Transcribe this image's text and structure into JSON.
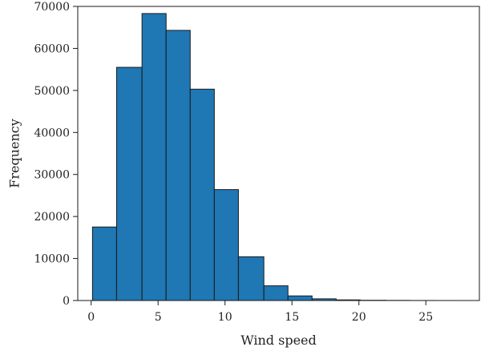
{
  "chart_data": {
    "type": "bar",
    "title": "",
    "xlabel": "Wind speed",
    "ylabel": "Frequency",
    "xlim": [
      -1.0,
      29.0
    ],
    "ylim": [
      0,
      70000
    ],
    "grid": false,
    "bar_color": "#1f77b4",
    "edge_color": "#1a1a1a",
    "x_ticks": [
      0,
      5,
      10,
      15,
      20,
      25
    ],
    "y_ticks": [
      0,
      10000,
      20000,
      30000,
      40000,
      50000,
      60000,
      70000
    ],
    "bins": [
      {
        "start": 0.1,
        "end": 1.9,
        "value": 17500
      },
      {
        "start": 1.9,
        "end": 3.8,
        "value": 55500
      },
      {
        "start": 3.8,
        "end": 5.6,
        "value": 68300
      },
      {
        "start": 5.6,
        "end": 7.4,
        "value": 64300
      },
      {
        "start": 7.4,
        "end": 9.2,
        "value": 50300
      },
      {
        "start": 9.2,
        "end": 11.0,
        "value": 26400
      },
      {
        "start": 11.0,
        "end": 12.9,
        "value": 10400
      },
      {
        "start": 12.9,
        "end": 14.7,
        "value": 3500
      },
      {
        "start": 14.7,
        "end": 16.5,
        "value": 1100
      },
      {
        "start": 16.5,
        "end": 18.3,
        "value": 400
      },
      {
        "start": 18.3,
        "end": 20.1,
        "value": 150
      },
      {
        "start": 20.1,
        "end": 22.0,
        "value": 60
      },
      {
        "start": 22.0,
        "end": 23.8,
        "value": 30
      },
      {
        "start": 23.8,
        "end": 25.6,
        "value": 10
      },
      {
        "start": 25.6,
        "end": 27.4,
        "value": 5
      }
    ]
  }
}
